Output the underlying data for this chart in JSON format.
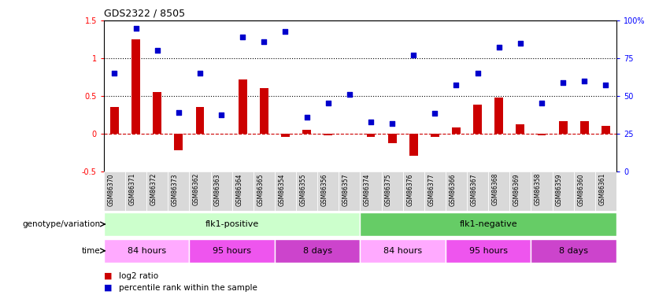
{
  "title": "GDS2322 / 8505",
  "samples": [
    "GSM86370",
    "GSM86371",
    "GSM86372",
    "GSM86373",
    "GSM86362",
    "GSM86363",
    "GSM86364",
    "GSM86365",
    "GSM86354",
    "GSM86355",
    "GSM86356",
    "GSM86357",
    "GSM86374",
    "GSM86375",
    "GSM86376",
    "GSM86377",
    "GSM86366",
    "GSM86367",
    "GSM86368",
    "GSM86369",
    "GSM86358",
    "GSM86359",
    "GSM86360",
    "GSM86361"
  ],
  "log2_ratio": [
    0.35,
    1.25,
    0.55,
    -0.22,
    0.35,
    0.0,
    0.72,
    0.6,
    -0.05,
    0.05,
    -0.02,
    0.0,
    -0.05,
    -0.13,
    -0.3,
    -0.05,
    0.08,
    0.38,
    0.48,
    0.12,
    -0.02,
    0.16,
    0.16,
    0.1
  ],
  "percentile_left": [
    0.8,
    1.4,
    1.1,
    0.28,
    0.8,
    0.25,
    1.28,
    1.22,
    1.36,
    0.22,
    0.4,
    0.52,
    0.15,
    0.13,
    1.04,
    0.27,
    0.65,
    0.8,
    1.15,
    1.2,
    0.4,
    0.68,
    0.7,
    0.65
  ],
  "ylim_left": [
    -0.5,
    1.5
  ],
  "bar_color": "#cc0000",
  "dot_color": "#0000cc",
  "hline_color": "#cc0000",
  "dotline1": 1.0,
  "dotline2": 0.5,
  "tick_bg_color": "#d9d9d9",
  "genotype_groups": [
    {
      "label": "flk1-positive",
      "start": 0,
      "end": 12,
      "color": "#ccffcc"
    },
    {
      "label": "flk1-negative",
      "start": 12,
      "end": 24,
      "color": "#66cc66"
    }
  ],
  "time_groups": [
    {
      "label": "84 hours",
      "start": 0,
      "end": 4,
      "color": "#ffaaff"
    },
    {
      "label": "95 hours",
      "start": 4,
      "end": 8,
      "color": "#ee55ee"
    },
    {
      "label": "8 days",
      "start": 8,
      "end": 12,
      "color": "#cc44cc"
    },
    {
      "label": "84 hours",
      "start": 12,
      "end": 16,
      "color": "#ffaaff"
    },
    {
      "label": "95 hours",
      "start": 16,
      "end": 20,
      "color": "#ee55ee"
    },
    {
      "label": "8 days",
      "start": 20,
      "end": 24,
      "color": "#cc44cc"
    }
  ],
  "legend_label_red": "log2 ratio",
  "legend_label_blue": "percentile rank within the sample",
  "left_label_geno": "genotype/variation",
  "left_label_time": "time"
}
